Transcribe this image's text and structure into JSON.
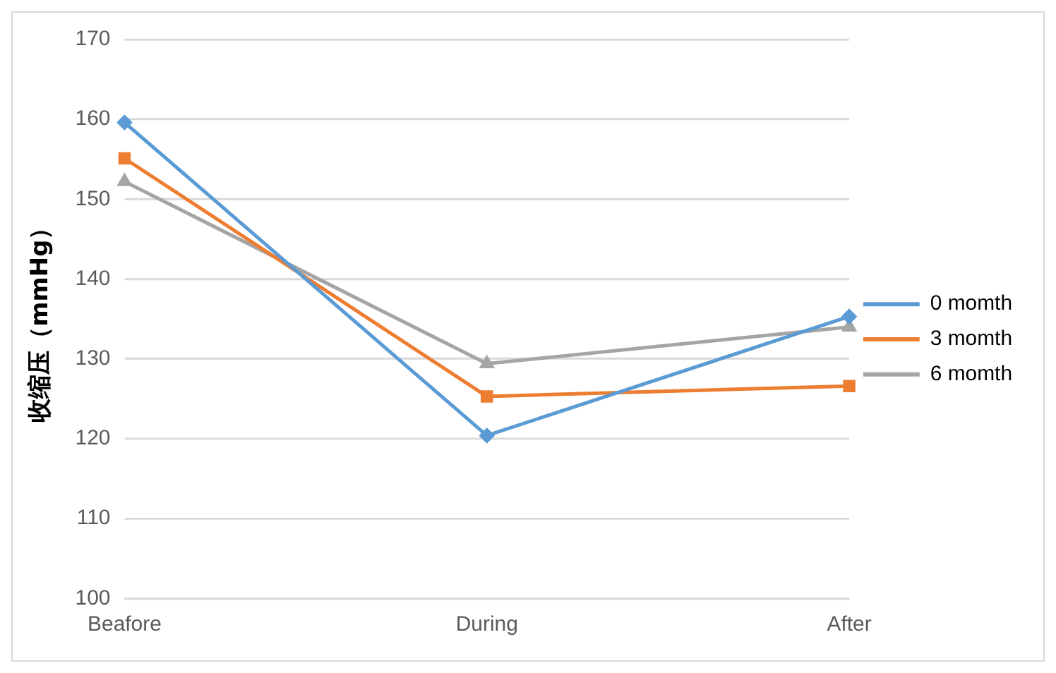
{
  "chart_data": {
    "type": "line",
    "ylabel": "收缩压（mmHg）",
    "categories": [
      "Beafore",
      "During",
      "After"
    ],
    "series": [
      {
        "name": "0 momth",
        "color": "#5b9bd5",
        "marker": "diamond",
        "values": [
          159.6,
          120.4,
          135.3
        ]
      },
      {
        "name": "3 momth",
        "color": "#ed7d31",
        "marker": "square",
        "values": [
          155.1,
          125.3,
          126.6
        ]
      },
      {
        "name": "6 momth",
        "color": "#a5a5a5",
        "marker": "triangle",
        "values": [
          152.2,
          129.4,
          134.0
        ]
      }
    ],
    "ylim": [
      100,
      170
    ],
    "yticks": [
      100,
      110,
      120,
      130,
      140,
      150,
      160,
      170
    ],
    "grid": "y",
    "legend": "right"
  }
}
